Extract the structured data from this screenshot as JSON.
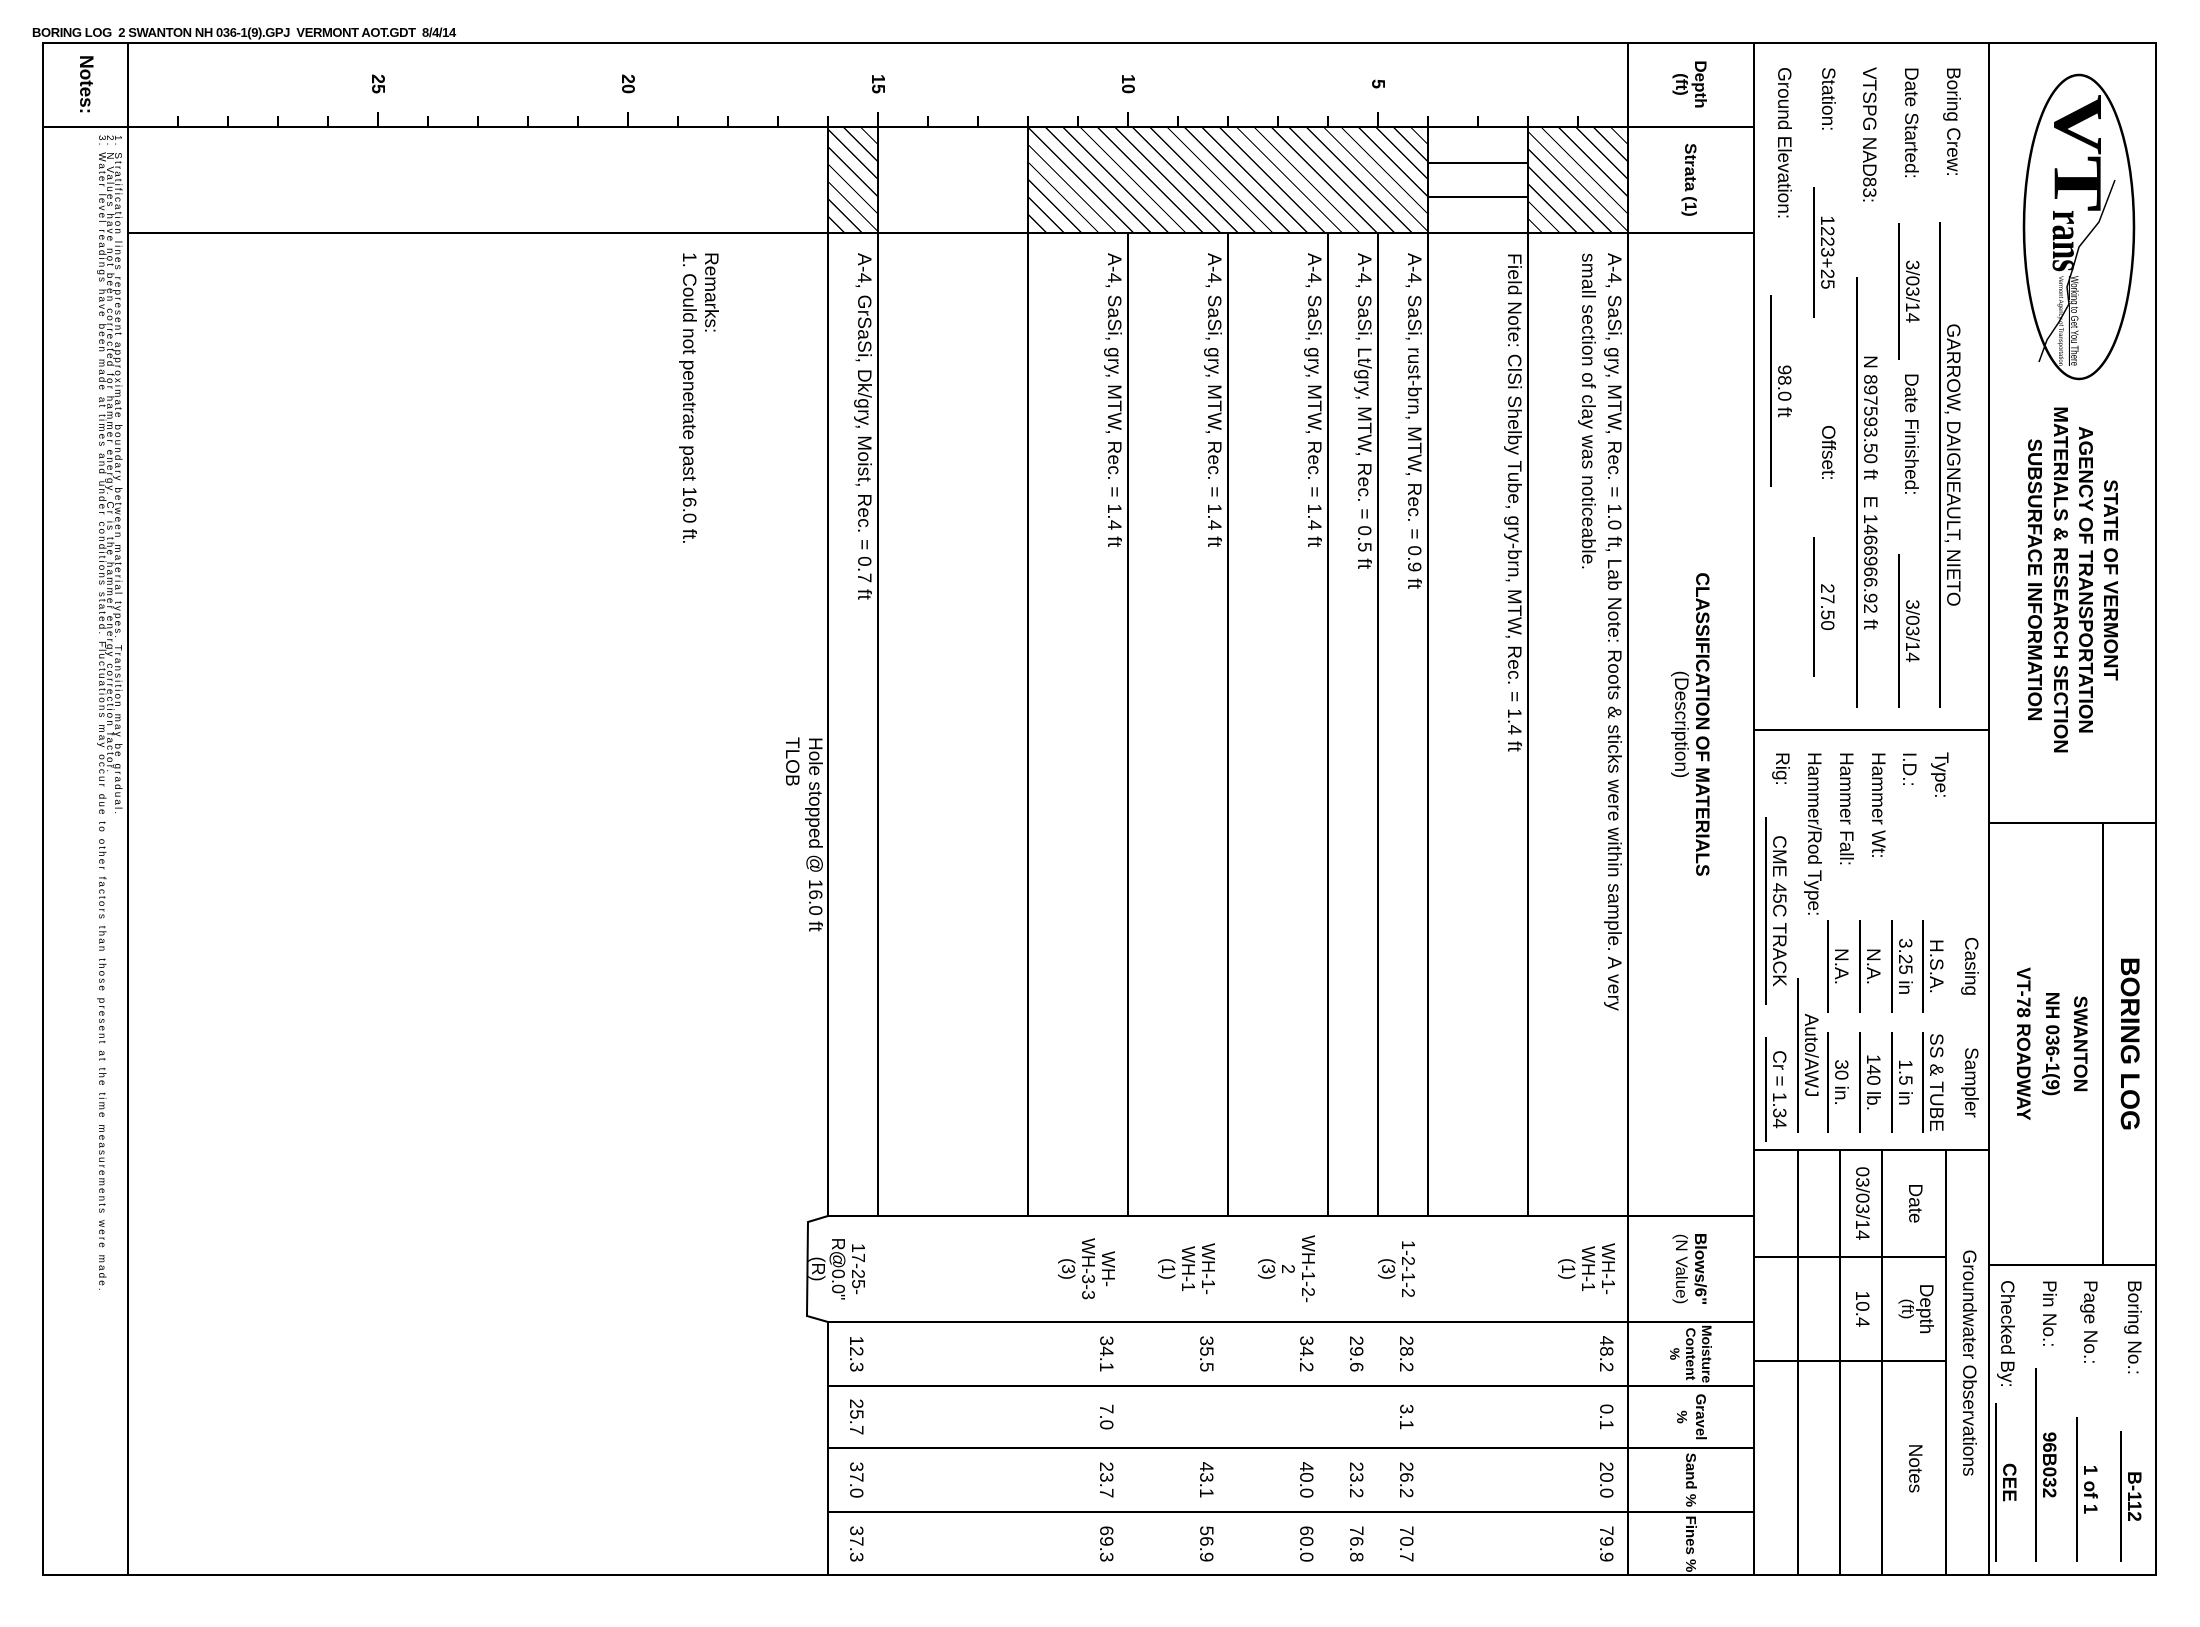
{
  "file_header": "BORING LOG  2 SWANTON NH 036-1(9).GPJ  VERMONT AOT.GDT  8/4/14",
  "logo": {
    "wordmark": "VTrans",
    "tagline": "Working to Get You There",
    "agency": "Vermont Agency of Transportation"
  },
  "agency_title": [
    "STATE OF VERMONT",
    "AGENCY OF TRANSPORTATION",
    "MATERIALS & RESEARCH SECTION",
    "SUBSURFACE INFORMATION"
  ],
  "boring_log": {
    "title": "BORING LOG",
    "project_lines": [
      "SWANTON",
      "NH 036-1(9)",
      "VT-78 ROADWAY"
    ]
  },
  "boring_id": {
    "boring_no_label": "Boring No.:",
    "boring_no": "B-112",
    "page_label": "Page No.:",
    "page": "1 of 1",
    "pin_label": "Pin No.:",
    "pin": "96B032",
    "checked_label": "Checked By:",
    "checked": "CEE"
  },
  "crew": {
    "boring_crew_label": "Boring Crew:",
    "boring_crew": "GARROW, DAIGNEAULT, NIETO",
    "date_started_label": "Date Started:",
    "date_started": "3/03/14",
    "date_finished_label": "Date Finished:",
    "date_finished": "3/03/14",
    "vtspg_label": "VTSPG NAD83:",
    "vtspg": "N 897593.50 ft   E 1466966.92 ft",
    "station_label": "Station:",
    "station": "1223+25",
    "offset_label": "Offset:",
    "offset": "27.50",
    "ground_elevation_label": "Ground Elevation:",
    "ground_elevation": "98.0 ft"
  },
  "equipment": {
    "casing_header": "Casing",
    "sampler_header": "Sampler",
    "type_label": "Type:",
    "type_casing": "H.S.A.",
    "type_sampler": "SS & TUBE",
    "id_label": "I.D.:",
    "id_casing": "3.25 in",
    "id_sampler": "1.5 in",
    "hammer_wt_label": "Hammer Wt:",
    "hammer_wt_casing": "N.A.",
    "hammer_wt_sampler": "140 lb.",
    "hammer_fall_label": "Hammer Fall:",
    "hammer_fall_casing": "N.A.",
    "hammer_fall_sampler": "30 in.",
    "hammer_rod_label": "Hammer/Rod Type:",
    "hammer_rod": "Auto/AWJ",
    "rig_label": "Rig:",
    "rig": "CME 45C TRACK",
    "cr": "Cr = 1.34"
  },
  "groundwater": {
    "title": "Groundwater Observations",
    "headers": {
      "date": "Date",
      "depth": "Depth",
      "depth_unit": "(ft)",
      "notes": "Notes"
    },
    "rows": [
      {
        "date": "03/03/14",
        "depth": "10.4",
        "notes": ""
      }
    ]
  },
  "columns": {
    "depth": "Depth",
    "depth_unit": "(ft)",
    "strata": "Strata (1)",
    "classification": "CLASSIFICATION OF MATERIALS",
    "classification_sub": "(Description)",
    "blows": "Blows/6\"",
    "blows_sub": "(N Value)",
    "moisture": "Moisture",
    "moisture_sub": "Content %",
    "gravel": "Gravel %",
    "sand": "Sand %",
    "fines": "Fines %"
  },
  "depth_axis": {
    "min": 0,
    "max": 30,
    "labels": [
      "5",
      "10",
      "15",
      "20",
      "25"
    ]
  },
  "strata": [
    {
      "top": 0,
      "bottom": 2,
      "pattern": "hatch"
    },
    {
      "top": 2,
      "bottom": 4,
      "pattern": "fill"
    },
    {
      "top": 4,
      "bottom": 12,
      "pattern": "hatch"
    },
    {
      "top": 12,
      "bottom": 15,
      "pattern": "none"
    },
    {
      "top": 15,
      "bottom": 16,
      "pattern": "hatch"
    }
  ],
  "log_rows": [
    {
      "top": 0,
      "bottom": 2,
      "description": [
        "A-4, SaSi, gry, MTW, Rec. = 1.0 ft, Lab Note: Roots & sticks were within sample. A very",
        "small section of clay was noticeable."
      ],
      "blows": [
        "WH-1-",
        "WH-1",
        "(1)"
      ],
      "moisture": "48.2",
      "gravel": "0.1",
      "sand": "20.0",
      "fines": "79.9"
    },
    {
      "top": 2,
      "bottom": 4,
      "description": [
        "Field Note: ClSi Shelby Tube, gry-brn, MTW, Rec. = 1.4 ft"
      ]
    },
    {
      "top": 4,
      "bottom": 5,
      "description": [
        "A-4, SaSi, rust-brn, MTW, Rec. = 0.9 ft"
      ],
      "blows": [
        "1-2-1-2",
        "(3)"
      ],
      "moisture": "28.2",
      "gravel": "3.1",
      "sand": "26.2",
      "fines": "70.7"
    },
    {
      "top": 5,
      "bottom": 6,
      "description": [
        "A-4, SaSi, Lt/gry, MTW, Rec. = 0.5 ft"
      ],
      "moisture": "29.6",
      "sand": "23.2",
      "fines": "76.8"
    },
    {
      "top": 6,
      "bottom": 8,
      "description": [
        "A-4, SaSi, gry, MTW, Rec. = 1.4 ft"
      ],
      "blows": [
        "WH-1-2-",
        "2",
        "(3)"
      ],
      "moisture": "34.2",
      "sand": "40.0",
      "fines": "60.0"
    },
    {
      "top": 8,
      "bottom": 10,
      "description": [
        "A-4, SaSi, gry, MTW, Rec. = 1.4 ft"
      ],
      "blows": [
        "WH-1-",
        "WH-1",
        "(1)"
      ],
      "moisture": "35.5",
      "sand": "43.1",
      "fines": "56.9"
    },
    {
      "top": 10,
      "bottom": 12,
      "description": [
        "A-4, SaSi, gry, MTW, Rec. = 1.4 ft"
      ],
      "blows": [
        "WH-",
        "WH-3-3",
        "(3)"
      ],
      "moisture": "34.1",
      "gravel": "7.0",
      "sand": "23.7",
      "fines": "69.3"
    },
    {
      "top": 12,
      "bottom": 15,
      "description": []
    },
    {
      "top": 15,
      "bottom": 16,
      "description": [
        "A-4, GrSaSi, Dk/gry, Moist, Rec. = 0.7 ft"
      ],
      "blows": [
        "17-25-",
        "R@0.0\"",
        "(R)"
      ],
      "moisture": "12.3",
      "gravel": "25.7",
      "sand": "37.0",
      "fines": "37.3"
    }
  ],
  "termination": [
    "Hole stopped @ 16.0 ft",
    "TLOB"
  ],
  "remarks": {
    "title": "Remarks:",
    "items": [
      "1. Could not penetrate past 16.0 ft."
    ]
  },
  "notes": {
    "title": "Notes:",
    "items": [
      "1. Stratification lines represent approximate boundary between material types. Transition may be gradual.",
      "2. N Values have not been corrected for hammer energy. Cr is the hammer energy correction factor.",
      "3. Water level readings have been made at times and under conditions stated. Fluctuations may occur due to other factors than those present at the time measurements were made."
    ]
  }
}
